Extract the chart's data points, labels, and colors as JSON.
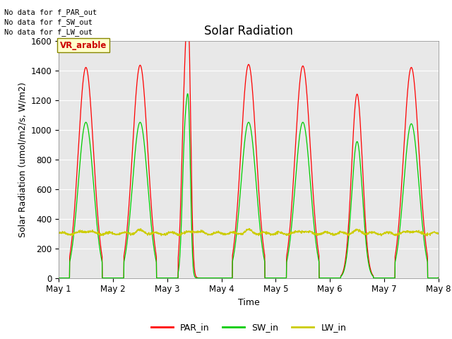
{
  "title": "Solar Radiation",
  "ylabel": "Solar Radiation (umol/m2/s, W/m2)",
  "xlabel": "Time",
  "ylim": [
    0,
    1600
  ],
  "yticks": [
    0,
    200,
    400,
    600,
    800,
    1000,
    1200,
    1400,
    1600
  ],
  "xtick_labels": [
    "May 1",
    "May 2",
    "May 3",
    "May 4",
    "May 5",
    "May 6",
    "May 7",
    "May 8"
  ],
  "background_color": "#e8e8e8",
  "title_fontsize": 12,
  "label_fontsize": 9,
  "annotation_lines": [
    "No data for f_PAR_out",
    "No data for f_SW_out",
    "No data for f_LW_out"
  ],
  "vr_arable_label": "VR_arable",
  "legend_entries": [
    "PAR_in",
    "SW_in",
    "LW_in"
  ],
  "par_color": "#ff0000",
  "sw_color": "#00cc00",
  "lw_color": "#cccc00"
}
